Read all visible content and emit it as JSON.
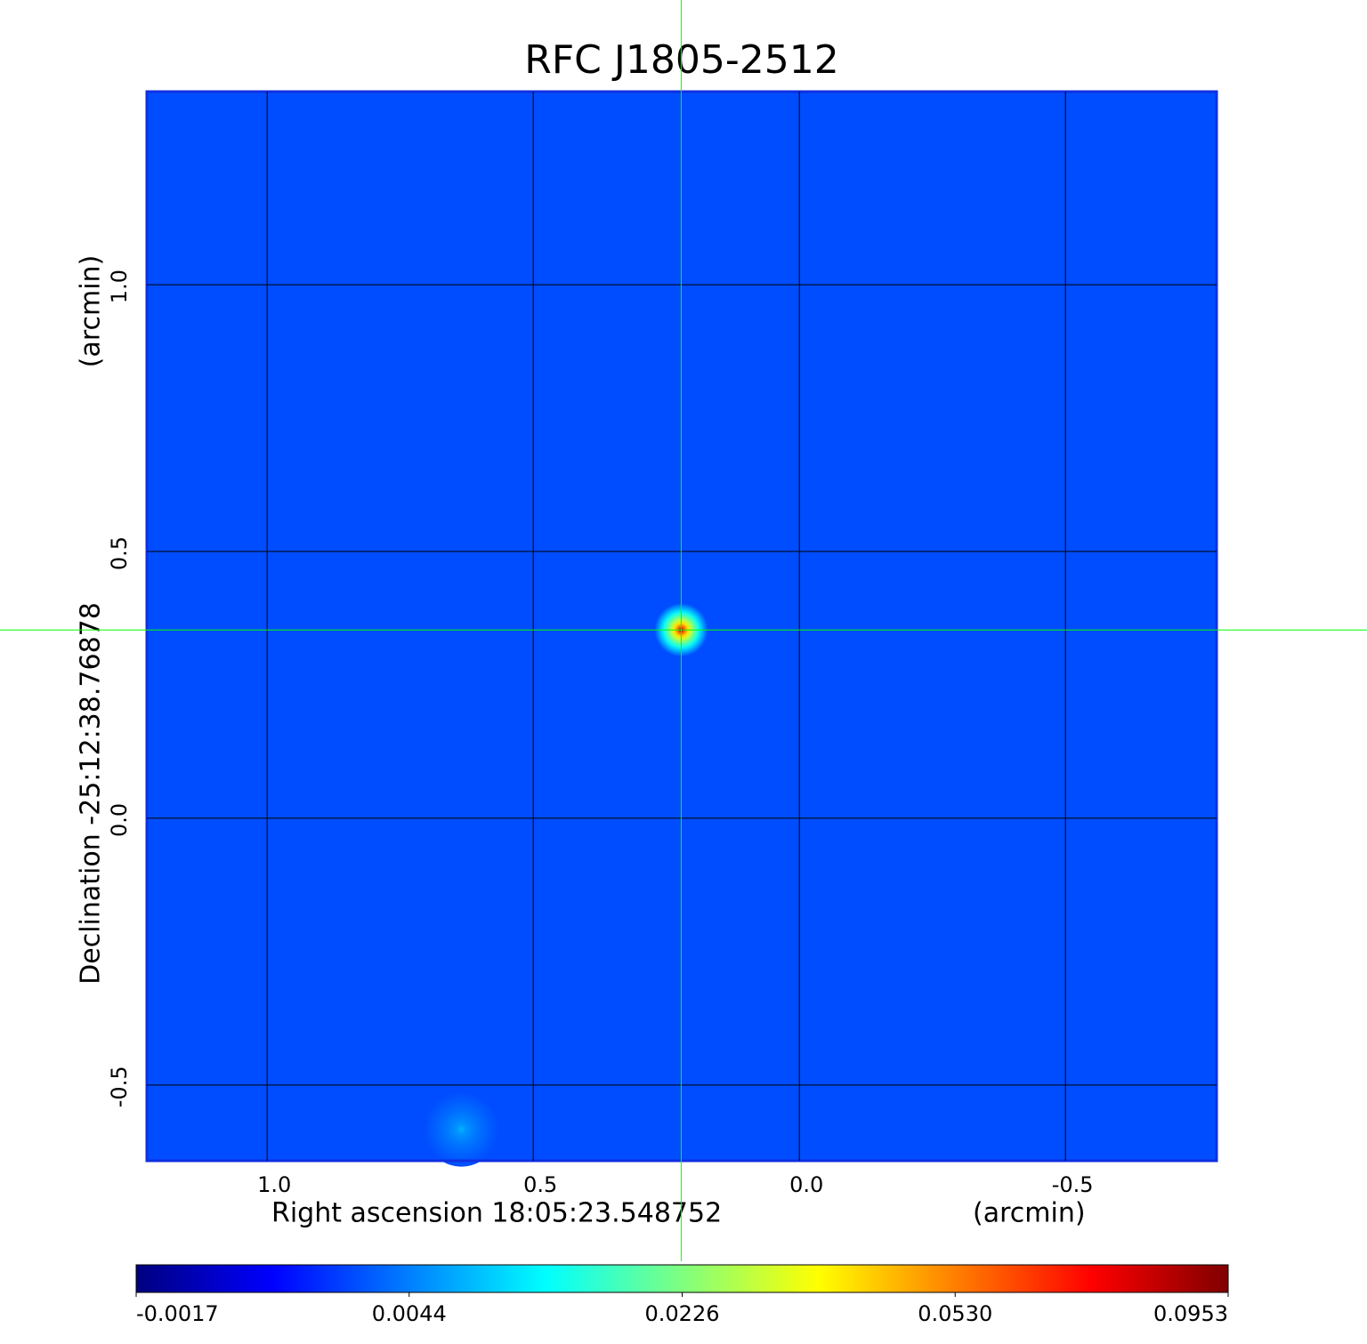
{
  "chart_data": {
    "type": "image",
    "title": "RFC J1805-2512",
    "title_color": "#1a1acc",
    "x_label": "Right ascension  18:05:23.548752",
    "x_unit": "(arcmin)",
    "y_label": "Declination  -25:12:38.76878",
    "y_unit": "(arcmin)",
    "xlim": [
      1.226,
      -0.784
    ],
    "ylim": [
      -0.642,
      1.362
    ],
    "xticks": [
      {
        "value": 1,
        "label": "1.0"
      },
      0.5,
      {
        "value": 0,
        "label": "0.0"
      },
      -0.5
    ],
    "yticks": [
      {
        "value": 1,
        "label": "1.0"
      },
      0.5,
      {
        "value": 0,
        "label": "0.0"
      },
      -0.5
    ],
    "grid": true,
    "grid_color": "#000000",
    "background_value": 0.0032,
    "sources": {
      "x": [
        0.222,
        0.635
      ],
      "y": [
        0.353,
        -0.583
      ],
      "values": [
        0.0953,
        0.008
      ]
    },
    "crosshair": {
      "x": 0.222,
      "y": 0.353,
      "color": "#00ff00"
    },
    "colorbar": {
      "ticks": [
        -0.0017,
        0.0044,
        0.0226,
        {
          "value": 0.053,
          "label": "0.0530"
        },
        0.0953
      ],
      "colors": [
        "#00007f",
        "#0000ff",
        "#007fff",
        "#00ffff",
        "#7fff7f",
        "#ffff00",
        "#ff7f00",
        "#ff0000",
        "#7f0000"
      ]
    }
  }
}
